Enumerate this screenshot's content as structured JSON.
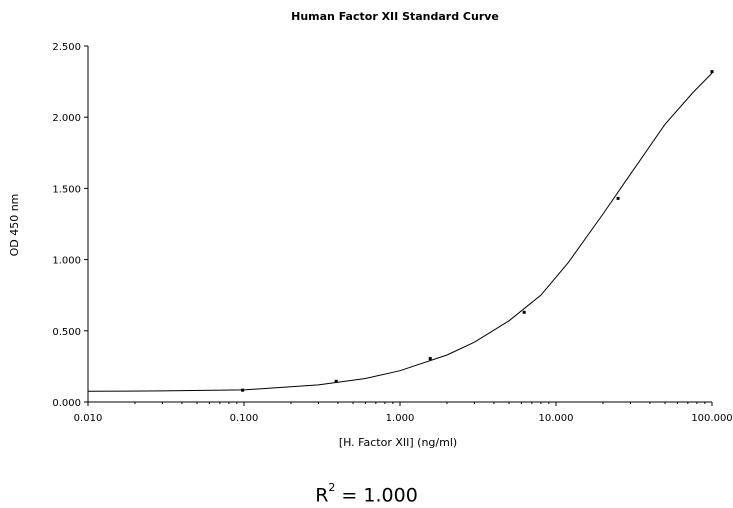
{
  "chart_data": {
    "type": "scatter",
    "title": "Human Factor XII Standard Curve",
    "xlabel": "[H. Factor XII] (ng/ml)",
    "ylabel": "OD 450 nm",
    "xscale": "log",
    "xlim": [
      0.01,
      100
    ],
    "ylim": [
      0,
      2.5
    ],
    "x_ticks": [
      "0.010",
      "0.100",
      "1.000",
      "10.000",
      "100.000"
    ],
    "y_ticks": [
      "0.000",
      "0.500",
      "1.000",
      "1.500",
      "2.000",
      "2.500"
    ],
    "grid": false,
    "series": [
      {
        "points": [
          {
            "x": 0.098,
            "y": 0.083
          },
          {
            "x": 0.39,
            "y": 0.145
          },
          {
            "x": 1.5625,
            "y": 0.305
          },
          {
            "x": 6.25,
            "y": 0.63
          },
          {
            "x": 25,
            "y": 1.43
          },
          {
            "x": 100,
            "y": 2.32
          }
        ],
        "fit": "4PL",
        "fit_curve": [
          {
            "x": 0.01,
            "y": 0.075
          },
          {
            "x": 0.03,
            "y": 0.078
          },
          {
            "x": 0.1,
            "y": 0.085
          },
          {
            "x": 0.3,
            "y": 0.12
          },
          {
            "x": 0.6,
            "y": 0.165
          },
          {
            "x": 1,
            "y": 0.22
          },
          {
            "x": 2,
            "y": 0.33
          },
          {
            "x": 3,
            "y": 0.42
          },
          {
            "x": 5,
            "y": 0.57
          },
          {
            "x": 8,
            "y": 0.75
          },
          {
            "x": 12,
            "y": 0.98
          },
          {
            "x": 20,
            "y": 1.32
          },
          {
            "x": 30,
            "y": 1.6
          },
          {
            "x": 50,
            "y": 1.95
          },
          {
            "x": 75,
            "y": 2.17
          },
          {
            "x": 100,
            "y": 2.31
          }
        ]
      }
    ],
    "annotation": {
      "r2_label": "R",
      "r2_exp": "2",
      "r2_value": " = 1.000"
    }
  }
}
